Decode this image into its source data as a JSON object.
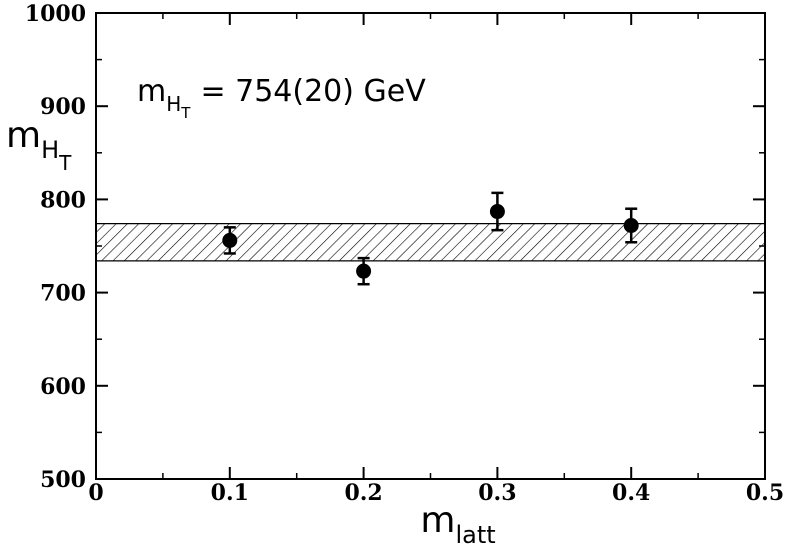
{
  "chart_data": {
    "type": "scatter",
    "xlabel": {
      "main": "m",
      "sub": "latt"
    },
    "ylabel": {
      "main": "m",
      "sub": "H",
      "subsub": "T"
    },
    "xlim": [
      0,
      0.5
    ],
    "ylim": [
      500,
      1000
    ],
    "x_ticks": [
      "0",
      "0.1",
      "0.2",
      "0.3",
      "0.4",
      "0.5"
    ],
    "y_ticks": [
      "500",
      "600",
      "700",
      "800",
      "900",
      "1000"
    ],
    "x_tick_values": [
      0,
      0.1,
      0.2,
      0.3,
      0.4,
      0.5
    ],
    "y_tick_values": [
      500,
      600,
      700,
      800,
      900,
      1000
    ],
    "grid": false,
    "points": [
      {
        "x": 0.1,
        "y": 756,
        "err": 14
      },
      {
        "x": 0.2,
        "y": 723,
        "err": 14
      },
      {
        "x": 0.3,
        "y": 787,
        "err": 20
      },
      {
        "x": 0.4,
        "y": 772,
        "err": 18
      }
    ],
    "band": {
      "center": 754,
      "lower": 734,
      "upper": 774,
      "pattern": "hatched"
    },
    "annotation": {
      "prefix": "m",
      "sub": "H",
      "subsub": "T",
      "text": "= 754(20) GeV"
    }
  }
}
